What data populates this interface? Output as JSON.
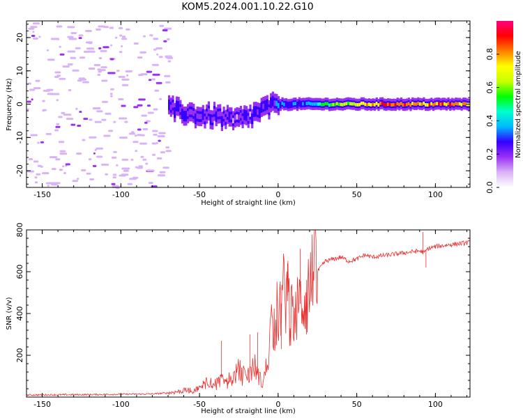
{
  "figure_title": "KOM5.2024.001.10.22.G10",
  "chart_data": [
    {
      "type": "heatmap",
      "title": "",
      "xlabel": "Height of straight line (km)",
      "ylabel": "Frequency (Hz)",
      "xlim": [
        -160,
        122
      ],
      "ylim": [
        -25,
        25
      ],
      "xticks": [
        -150,
        -100,
        -50,
        0,
        50,
        100
      ],
      "yticks": [
        -20,
        -10,
        0,
        10,
        20
      ],
      "colorbar": {
        "label": "Normalized spectral amplitude",
        "range": [
          0,
          1
        ],
        "ticks": [
          0.0,
          0.2,
          0.4,
          0.6,
          0.8
        ],
        "colormap": [
          "#ffffff",
          "#d9b3f7",
          "#9b30f5",
          "#3300ff",
          "#00b8ff",
          "#00ffcc",
          "#00ff00",
          "#c8ff00",
          "#ffff00",
          "#ff8000",
          "#ff0000",
          "#ff0080"
        ]
      },
      "ridge": {
        "x": [
          -70,
          -60,
          -50,
          -40,
          -30,
          -20,
          -10,
          0,
          10,
          20,
          30,
          50,
          70,
          90,
          110,
          122
        ],
        "frequency": [
          -1.5,
          -2.5,
          -3.5,
          -3.5,
          -5,
          -4,
          -1.5,
          0,
          0,
          0,
          0,
          0,
          0,
          0,
          0,
          0
        ],
        "amplitude": [
          0.2,
          0.25,
          0.2,
          0.22,
          0.2,
          0.2,
          0.25,
          0.3,
          0.3,
          0.35,
          0.55,
          0.7,
          0.85,
          0.8,
          0.8,
          0.75
        ]
      },
      "noise_region_x": [
        -160,
        -70
      ],
      "noise_amplitude": 0.08
    },
    {
      "type": "line",
      "title": "",
      "xlabel": "Height of straight line (km)",
      "ylabel": "SNR (v/v)",
      "xlim": [
        -160,
        122
      ],
      "ylim": [
        0,
        800
      ],
      "xticks": [
        -150,
        -100,
        -50,
        0,
        50,
        100
      ],
      "yticks": [
        200,
        400,
        600,
        800
      ],
      "color": "#e8312f",
      "series": [
        {
          "x": [
            -160,
            -120,
            -80,
            -70,
            -60,
            -50,
            -45,
            -40,
            -35,
            -30,
            -25,
            -20,
            -15,
            -10,
            -8,
            -5,
            -2,
            0,
            5,
            10,
            15,
            20,
            25,
            30,
            35,
            40,
            45,
            50,
            55,
            60,
            70,
            80,
            90,
            93,
            95,
            100,
            110,
            122
          ],
          "values": [
            10,
            12,
            15,
            20,
            30,
            40,
            80,
            60,
            100,
            80,
            130,
            90,
            150,
            60,
            120,
            300,
            380,
            400,
            520,
            350,
            470,
            520,
            600,
            650,
            660,
            670,
            650,
            660,
            680,
            670,
            680,
            690,
            700,
            690,
            710,
            720,
            730,
            740
          ]
        }
      ],
      "spikes": [
        {
          "x": -36,
          "value": 270
        },
        {
          "x": -18,
          "value": 300
        },
        {
          "x": -13,
          "value": 310
        },
        {
          "x": 2,
          "value": 230
        },
        {
          "x": 6,
          "value": 640
        },
        {
          "x": 14,
          "value": 710
        },
        {
          "x": 18,
          "value": 300
        },
        {
          "x": 92,
          "value": 790
        },
        {
          "x": 94,
          "value": 620
        }
      ]
    }
  ]
}
